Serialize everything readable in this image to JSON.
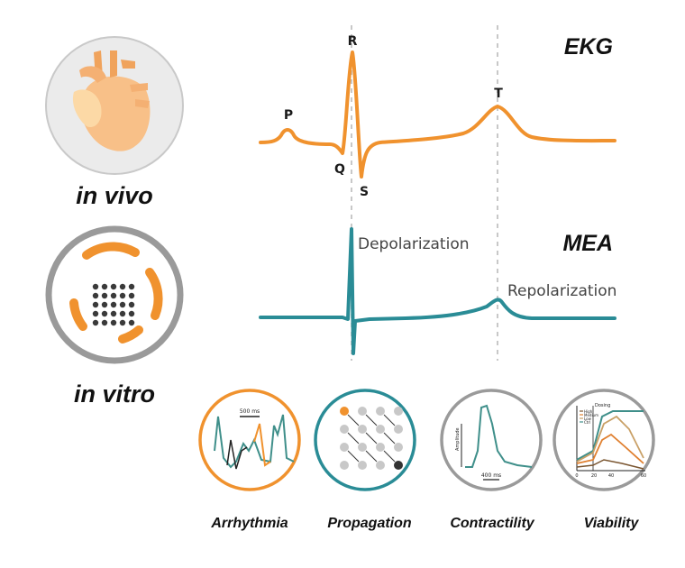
{
  "labels": {
    "in_vivo": "in vivo",
    "in_vitro": "in vitro",
    "ekg": "EKG",
    "mea": "MEA",
    "depolarization": "Depolarization",
    "repolarization": "Repolarization"
  },
  "ekg_waves": {
    "p": "P",
    "q": "Q",
    "r": "R",
    "s": "S",
    "t": "T"
  },
  "assays": [
    {
      "label": "Arrhythmia",
      "inset_scale": "500 ms"
    },
    {
      "label": "Propagation"
    },
    {
      "label": "Contractility",
      "inset_ylabel": "Amplitude",
      "inset_scale": "400 ms"
    },
    {
      "label": "Viability",
      "inset_title": "Dosing",
      "inset_legend": [
        "High",
        "Medium",
        "Low",
        "Ctrl"
      ],
      "inset_ticks": [
        "0",
        "20",
        "40",
        "60"
      ]
    }
  ],
  "colors": {
    "orange": "#f0922e",
    "teal": "#2a8c96",
    "gray_ring": "#9a9a9a",
    "dark": "#1a1a1a",
    "heart_light": "#fcd9a6",
    "heart_mid": "#f8c088"
  }
}
